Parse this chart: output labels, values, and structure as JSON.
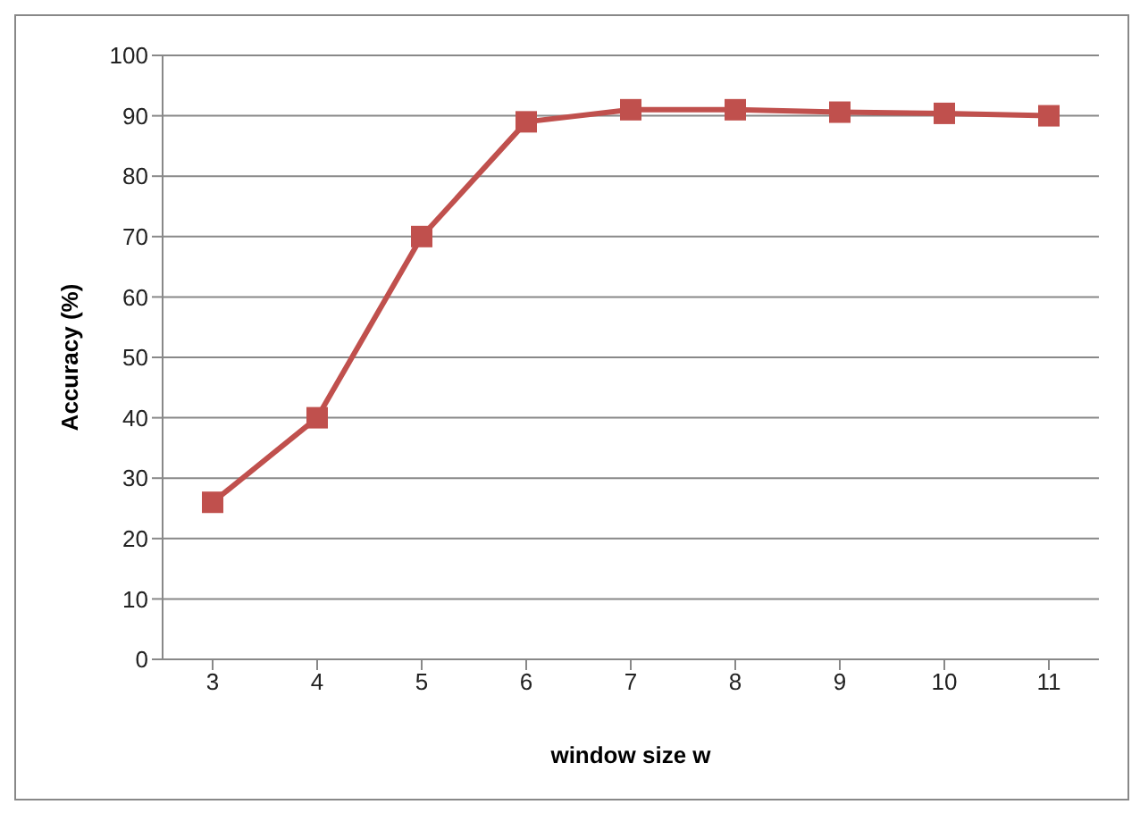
{
  "chart_data": {
    "type": "line",
    "xlabel": "window size w",
    "ylabel": "Accuracy (%)",
    "categories": [
      "3",
      "4",
      "5",
      "6",
      "7",
      "8",
      "9",
      "10",
      "11"
    ],
    "series": [
      {
        "color": "#c0504d",
        "values": [
          26,
          40,
          70,
          89,
          91,
          91,
          90.6,
          90.4,
          90
        ]
      }
    ],
    "ylim": [
      0,
      100
    ],
    "yticks": [
      0,
      10,
      20,
      30,
      40,
      50,
      60,
      70,
      80,
      90,
      100
    ],
    "grid": "y",
    "marker": "square",
    "line_style": "solid"
  }
}
